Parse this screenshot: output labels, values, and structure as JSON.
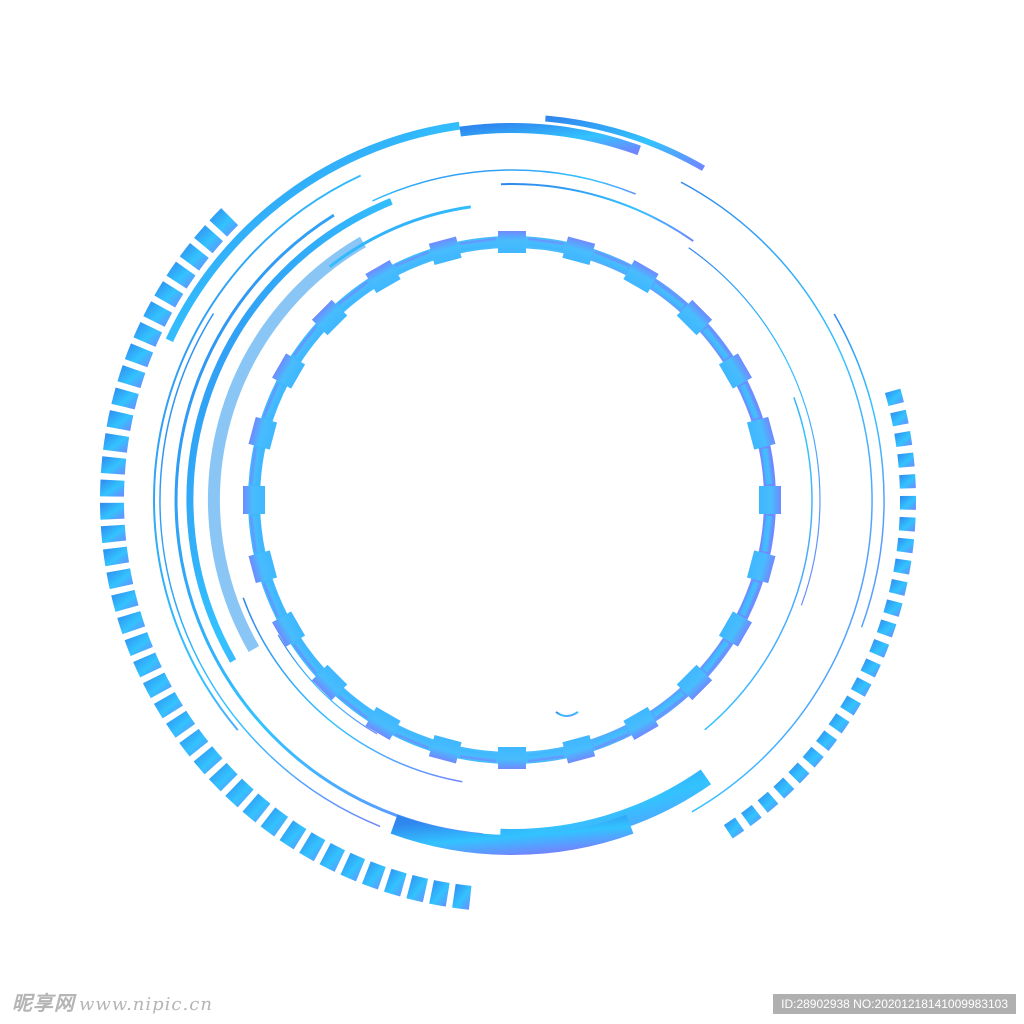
{
  "watermark": {
    "logo_text": "昵享网",
    "url": "www.nipic.cn",
    "id_label": "ID:28902938 NO:20201218141009983103"
  },
  "colors": {
    "gradient_start": "#2f86ee",
    "gradient_mid": "#33c3ff",
    "gradient_end": "#6f86ff",
    "light_blue": "#8ac6f5",
    "background": "#ffffff"
  }
}
